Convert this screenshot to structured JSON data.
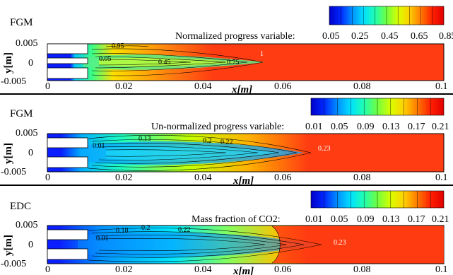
{
  "chart_data": [
    {
      "type": "heatmap",
      "model_label": "FGM",
      "colorbar_title": "Normalized progress variable:",
      "colorbar_ticks": [
        "0.05",
        "0.25",
        "0.45",
        "0.65",
        "0.85"
      ],
      "xlabel": "x[m]",
      "ylabel": "y[m]",
      "xlim": [
        0,
        0.1
      ],
      "ylim": [
        -0.005,
        0.005
      ],
      "xticks": [
        "0",
        "0.02",
        "0.04",
        "0.06",
        "0.08",
        "0.1"
      ],
      "yticks": [
        "0.005",
        "0",
        "-0.005"
      ],
      "contour_labels": [
        {
          "text": "0.95",
          "x": 0.0175,
          "y": 0.0028
        },
        {
          "text": "0.05",
          "x": 0.0148,
          "y": 0.0003
        },
        {
          "text": "0.45",
          "x": 0.029,
          "y": -0.0002
        },
        {
          "text": "0.75",
          "x": 0.0465,
          "y": -0.0002
        },
        {
          "text": "1",
          "x": 0.0533,
          "y": 0.0022
        }
      ]
    },
    {
      "type": "heatmap",
      "model_label": "FGM",
      "colorbar_title": "Un-normalized progress variable:",
      "colorbar_ticks": [
        "0.01",
        "0.05",
        "0.09",
        "0.13",
        "0.17",
        "0.21"
      ],
      "xlabel": "x[m]",
      "ylabel": "y[m]",
      "xlim": [
        0,
        0.1
      ],
      "ylim": [
        -0.005,
        0.005
      ],
      "xticks": [
        "0",
        "0.02",
        "0.04",
        "0.06",
        "0.08",
        "0.1"
      ],
      "yticks": [
        "0.005",
        "0",
        "-0.005"
      ],
      "contour_labels": [
        {
          "text": "0.01",
          "x": 0.0129,
          "y": 0.0024
        },
        {
          "text": "0.13",
          "x": 0.0233,
          "y": 0.0045
        },
        {
          "text": "0.2",
          "x": 0.0392,
          "y": 0.0039
        },
        {
          "text": "0.22",
          "x": 0.0437,
          "y": 0.0036
        },
        {
          "text": "0.23",
          "x": 0.0683,
          "y": 0.0013
        }
      ]
    },
    {
      "type": "heatmap",
      "model_label": "EDC",
      "colorbar_title": "Mass fraction of CO2:",
      "colorbar_ticks": [
        "0.01",
        "0.05",
        "0.09",
        "0.13",
        "0.17",
        "0.21"
      ],
      "xlabel": "x[m]",
      "ylabel": "y[m]",
      "xlim": [
        0,
        0.1
      ],
      "ylim": [
        -0.005,
        0.005
      ],
      "xticks": [
        "0",
        "0.02",
        "0.04",
        "0.06",
        "0.08",
        "0.1"
      ],
      "yticks": [
        "0.005",
        "0",
        "-0.005"
      ],
      "contour_labels": [
        {
          "text": "0.01",
          "x": 0.0121,
          "y": 0.0016
        },
        {
          "text": "0.18",
          "x": 0.0171,
          "y": 0.0041
        },
        {
          "text": "0.2",
          "x": 0.0237,
          "y": 0.0045
        },
        {
          "text": "0.22",
          "x": 0.033,
          "y": 0.0041
        },
        {
          "text": "0.23",
          "x": 0.0671,
          "y": 0.0006
        }
      ]
    }
  ],
  "colors": {
    "fresh": "#0a1eff",
    "burnt": "#ff3c12",
    "colormap": [
      "#0000c8",
      "#0028ff",
      "#0090ff",
      "#00e0ff",
      "#20ffb0",
      "#70ff40",
      "#d8ff00",
      "#ffd000",
      "#ff7a00",
      "#ff2000",
      "#e00000"
    ]
  }
}
